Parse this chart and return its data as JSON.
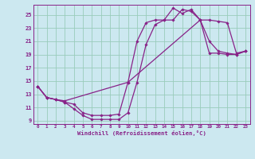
{
  "xlabel": "Windchill (Refroidissement éolien,°C)",
  "bg_color": "#cce8f0",
  "line_color": "#882288",
  "grid_color": "#99ccbb",
  "xlim": [
    -0.5,
    23.5
  ],
  "ylim": [
    8.5,
    26.5
  ],
  "yticks": [
    9,
    11,
    13,
    15,
    17,
    19,
    21,
    23,
    25
  ],
  "xticks": [
    0,
    1,
    2,
    3,
    4,
    5,
    6,
    7,
    8,
    9,
    10,
    11,
    12,
    13,
    14,
    15,
    16,
    17,
    18,
    19,
    20,
    21,
    22,
    23
  ],
  "curve1_x": [
    0,
    1,
    2,
    3,
    4,
    5,
    6,
    7,
    8,
    9,
    10,
    11,
    12,
    13,
    14,
    15,
    16,
    17,
    18,
    19,
    20,
    21,
    22,
    23
  ],
  "curve1_y": [
    14.2,
    12.5,
    12.2,
    11.8,
    10.8,
    9.8,
    9.2,
    9.2,
    9.2,
    9.2,
    10.2,
    14.8,
    20.5,
    23.5,
    24.2,
    24.2,
    25.8,
    25.5,
    24.2,
    19.2,
    19.2,
    19.0,
    19.0,
    19.5
  ],
  "curve2_x": [
    0,
    1,
    2,
    3,
    4,
    5,
    6,
    7,
    8,
    9,
    10,
    11,
    12,
    13,
    14,
    15,
    16,
    17,
    18,
    19,
    20,
    21,
    22,
    23
  ],
  "curve2_y": [
    14.2,
    12.5,
    12.2,
    11.8,
    11.5,
    10.2,
    9.8,
    9.8,
    9.8,
    10.0,
    14.8,
    21.0,
    23.8,
    24.2,
    24.2,
    26.0,
    25.2,
    25.8,
    24.2,
    21.0,
    19.5,
    19.2,
    19.0,
    19.5
  ],
  "curve3_x": [
    0,
    1,
    2,
    3,
    10,
    18,
    19,
    20,
    21,
    22,
    23
  ],
  "curve3_y": [
    14.2,
    12.5,
    12.2,
    12.0,
    14.8,
    24.2,
    24.2,
    24.0,
    23.8,
    19.2,
    19.5
  ]
}
